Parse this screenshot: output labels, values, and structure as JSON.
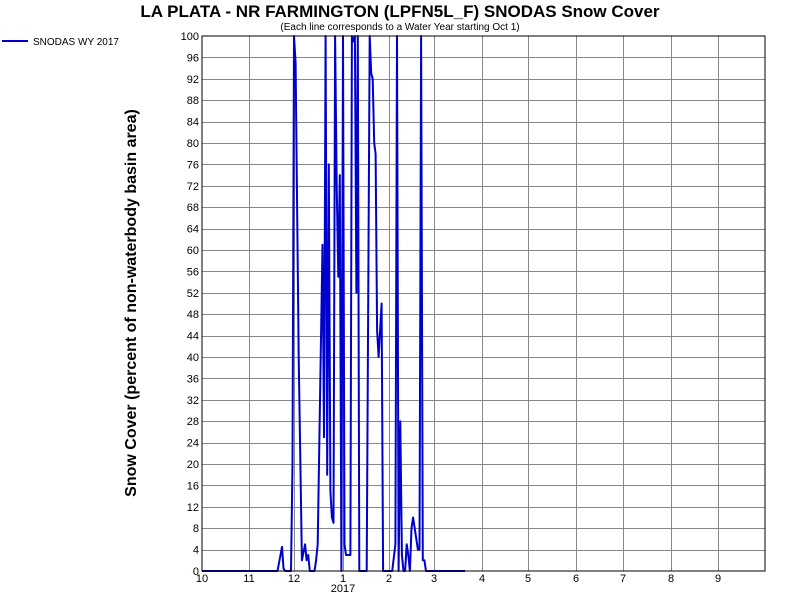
{
  "chart_data": {
    "type": "line",
    "title": "LA PLATA - NR FARMINGTON (LPFN5L_F) SNODAS Snow Cover",
    "subtitle": "(Each line corresponds to a Water Year starting Oct 1)",
    "ylabel": "Snow Cover (percent of non-waterbody basin area)",
    "xlabel": "",
    "x_tick_labels": [
      "10",
      "11",
      "12",
      "1",
      "2",
      "3",
      "4",
      "5",
      "6",
      "7",
      "8",
      "9"
    ],
    "x_year_label": "2017",
    "ylim": [
      0,
      100
    ],
    "y_ticks": [
      0,
      4,
      8,
      12,
      16,
      20,
      24,
      28,
      32,
      36,
      40,
      44,
      48,
      52,
      56,
      60,
      64,
      68,
      72,
      76,
      80,
      84,
      88,
      92,
      96,
      100
    ],
    "grid": true,
    "legend_position": "top-left",
    "series": [
      {
        "name": "SNODAS WY 2017",
        "color": "#0000cc",
        "x": [
          "2016-10-01",
          "2016-11-20",
          "2016-11-23",
          "2016-11-24",
          "2016-11-25",
          "2016-11-29",
          "2016-11-30",
          "2016-12-01",
          "2016-12-02",
          "2016-12-04",
          "2016-12-06",
          "2016-12-08",
          "2016-12-09",
          "2016-12-10",
          "2016-12-11",
          "2016-12-12",
          "2016-12-13",
          "2016-12-14",
          "2016-12-15",
          "2016-12-16",
          "2016-12-19",
          "2016-12-20",
          "2016-12-21",
          "2016-12-22",
          "2016-12-23",
          "2016-12-24",
          "2016-12-25",
          "2016-12-26",
          "2016-12-27",
          "2016-12-28",
          "2016-12-29",
          "2016-12-30",
          "2016-12-31",
          "2017-01-01",
          "2017-01-02",
          "2017-01-03",
          "2017-01-04",
          "2017-01-05",
          "2017-01-06",
          "2017-01-07",
          "2017-01-08",
          "2017-01-09",
          "2017-01-10",
          "2017-01-11",
          "2017-01-12",
          "2017-01-13",
          "2017-01-14",
          "2017-01-17",
          "2017-01-19",
          "2017-01-20",
          "2017-01-21",
          "2017-01-22",
          "2017-01-23",
          "2017-01-24",
          "2017-01-25",
          "2017-01-27",
          "2017-01-28",
          "2017-02-01",
          "2017-02-03",
          "2017-02-05",
          "2017-02-06",
          "2017-02-07",
          "2017-02-08",
          "2017-02-09",
          "2017-02-10",
          "2017-02-11",
          "2017-02-12",
          "2017-02-13",
          "2017-02-14",
          "2017-02-15",
          "2017-02-16",
          "2017-02-17",
          "2017-02-18",
          "2017-02-19",
          "2017-02-20",
          "2017-02-21",
          "2017-02-22",
          "2017-02-23",
          "2017-02-24",
          "2017-02-25",
          "2017-02-26",
          "2017-02-27",
          "2017-02-28",
          "2017-03-01",
          "2017-03-02",
          "2017-03-03",
          "2017-03-04",
          "2017-03-07",
          "2017-03-21"
        ],
        "values": [
          0,
          0,
          4.5,
          0.5,
          0,
          0,
          20,
          100,
          95,
          40,
          2,
          5,
          2,
          3,
          0,
          0,
          0,
          0,
          2,
          5,
          61,
          25,
          100,
          18,
          76,
          15,
          10,
          9,
          100,
          72,
          55,
          74,
          0,
          100,
          5,
          3,
          3,
          3,
          3,
          100,
          99,
          100,
          52,
          100,
          0,
          0,
          0,
          0,
          100,
          93,
          92,
          80,
          78,
          45,
          40,
          50,
          0,
          0,
          0,
          5,
          100,
          0,
          28,
          3,
          0,
          0,
          5,
          3,
          0,
          8,
          10,
          8,
          6,
          4,
          4,
          100,
          2,
          2,
          0,
          0,
          0,
          0,
          0,
          0,
          0,
          0,
          0,
          0,
          0
        ]
      }
    ]
  }
}
